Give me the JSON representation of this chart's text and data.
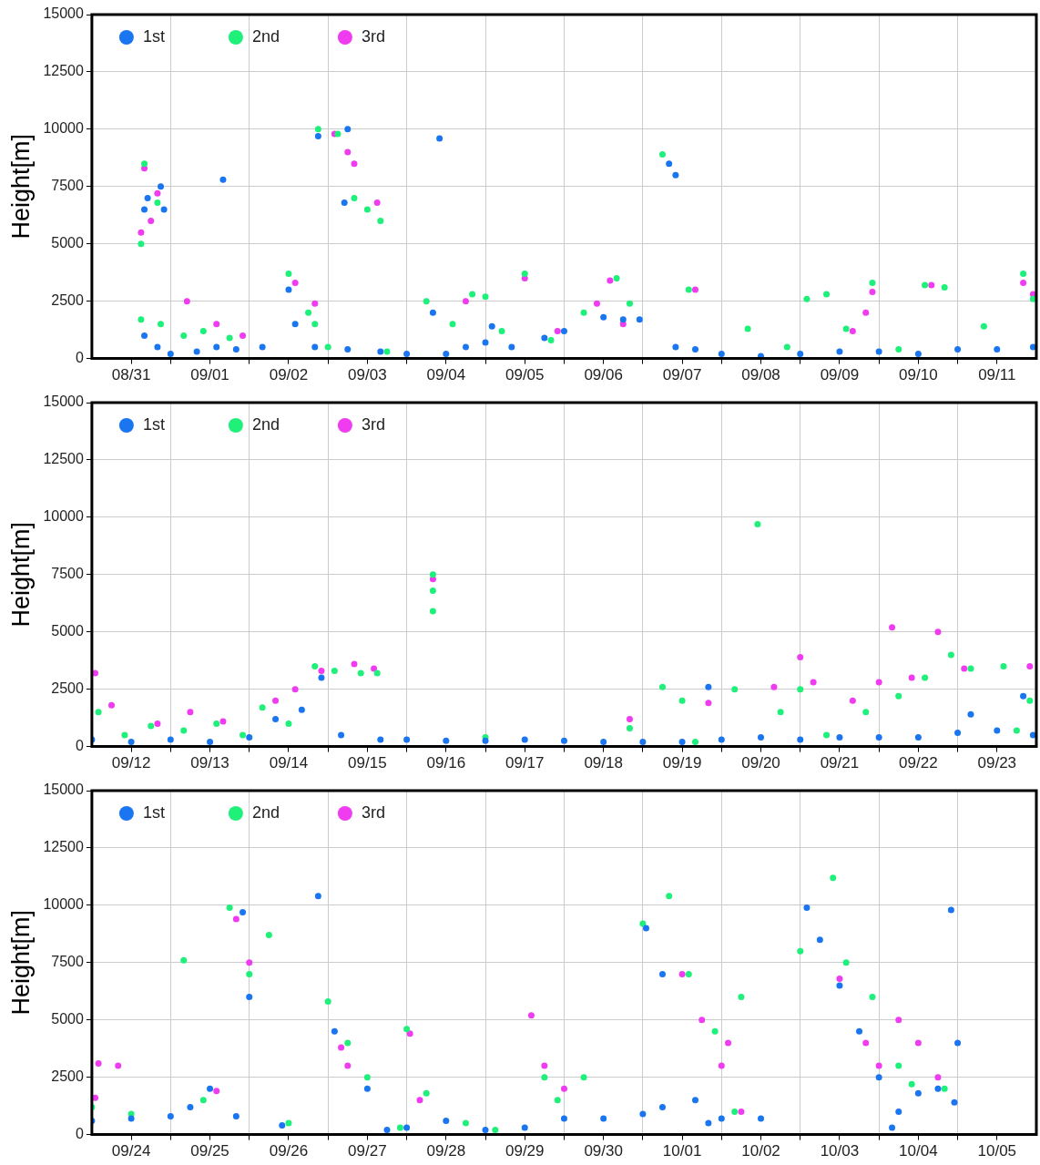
{
  "chart_data": [
    {
      "type": "scatter",
      "ylabel": "Height[m]",
      "legend": "top left",
      "grid": true,
      "marker": "circle",
      "xlim": [
        "--08-31T00:00",
        "--09-12T00:00"
      ],
      "ylim": [
        0,
        15000
      ],
      "yticks": [
        0,
        2500,
        5000,
        7500,
        10000,
        12500,
        15000
      ],
      "xticks": [
        {
          "value": "--08-31T12:00",
          "label": "08/31"
        },
        {
          "value": "--09-01T00:00",
          "label": null
        },
        {
          "value": "--09-01T12:00",
          "label": "09/01"
        },
        {
          "value": "--09-02T00:00",
          "label": null
        },
        {
          "value": "--09-02T12:00",
          "label": "09/02"
        },
        {
          "value": "--09-03T00:00",
          "label": null
        },
        {
          "value": "--09-03T12:00",
          "label": "09/03"
        },
        {
          "value": "--09-04T00:00",
          "label": null
        },
        {
          "value": "--09-04T12:00",
          "label": "09/04"
        },
        {
          "value": "--09-05T00:00",
          "label": null
        },
        {
          "value": "--09-05T12:00",
          "label": "09/05"
        },
        {
          "value": "--09-06T00:00",
          "label": null
        },
        {
          "value": "--09-06T12:00",
          "label": "09/06"
        },
        {
          "value": "--09-07T00:00",
          "label": null
        },
        {
          "value": "--09-07T12:00",
          "label": "09/07"
        },
        {
          "value": "--09-08T00:00",
          "label": null
        },
        {
          "value": "--09-08T12:00",
          "label": "09/08"
        },
        {
          "value": "--09-09T00:00",
          "label": null
        },
        {
          "value": "--09-09T12:00",
          "label": "09/09"
        },
        {
          "value": "--09-10T00:00",
          "label": null
        },
        {
          "value": "--09-10T12:00",
          "label": "09/10"
        },
        {
          "value": "--09-11T00:00",
          "label": null
        },
        {
          "value": "--09-11T12:00",
          "label": "09/11"
        }
      ],
      "series": [
        {
          "name": "1st",
          "color": "#1a75f0",
          "x": [
            "--08-31T16:00",
            "--08-31T17:00",
            "--08-31T21:00",
            "--08-31T22:00",
            "--09-01T16:00",
            "--09-02T21:00",
            "--09-03T06:00",
            "--09-03T05:00",
            "--09-04T10:00",
            "--09-07T08:00",
            "--09-07T10:00",
            "--08-31T16:00",
            "--08-31T20:00",
            "--09-01T00:00",
            "--09-01T08:00",
            "--09-01T14:00",
            "--09-01T20:00",
            "--09-02T04:00",
            "--09-02T12:00",
            "--09-02T14:00",
            "--09-02T20:00",
            "--09-03T06:00",
            "--09-03T16:00",
            "--09-04T00:00",
            "--09-04T08:00",
            "--09-04T12:00",
            "--09-04T18:00",
            "--09-05T00:00",
            "--09-05T02:00",
            "--09-05T08:00",
            "--09-05T18:00",
            "--09-06T00:00",
            "--09-06T12:00",
            "--09-06T18:00",
            "--09-06T23:00",
            "--09-07T10:00",
            "--09-07T16:00",
            "--09-08T00:00",
            "--09-08T12:00",
            "--09-09T00:00",
            "--09-09T12:00",
            "--09-10T00:00",
            "--09-10T12:00",
            "--09-11T00:00",
            "--09-11T12:00",
            "--09-11T23:00"
          ],
          "values": [
            6500,
            7000,
            7500,
            6500,
            7800,
            9700,
            10000,
            6800,
            9600,
            8500,
            8000,
            1000,
            500,
            200,
            300,
            500,
            400,
            500,
            3000,
            1500,
            500,
            400,
            300,
            200,
            2000,
            200,
            500,
            700,
            1400,
            500,
            900,
            1200,
            1800,
            1700,
            1700,
            500,
            400,
            200,
            100,
            200,
            300,
            300,
            200,
            400,
            400,
            500
          ]
        },
        {
          "name": "2nd",
          "color": "#1ef07a",
          "x": [
            "--08-31T15:00",
            "--08-31T16:00",
            "--08-31T20:00",
            "--08-31T15:00",
            "--08-31T21:00",
            "--09-01T04:00",
            "--09-01T10:00",
            "--09-01T18:00",
            "--09-02T12:00",
            "--09-02T18:00",
            "--09-02T20:00",
            "--09-02T21:00",
            "--09-03T03:00",
            "--09-03T08:00",
            "--09-03T12:00",
            "--09-03T16:00",
            "--09-03T00:00",
            "--09-03T18:00",
            "--09-04T06:00",
            "--09-04T14:00",
            "--09-04T20:00",
            "--09-05T00:00",
            "--09-05T05:00",
            "--09-05T12:00",
            "--09-05T20:00",
            "--09-06T06:00",
            "--09-06T16:00",
            "--09-06T20:00",
            "--09-07T06:00",
            "--09-07T14:00",
            "--09-08T08:00",
            "--09-08T20:00",
            "--09-09T02:00",
            "--09-09T08:00",
            "--09-09T14:00",
            "--09-09T22:00",
            "--09-10T06:00",
            "--09-10T14:00",
            "--09-10T20:00",
            "--09-11T08:00",
            "--09-11T20:00",
            "--09-11T23:00"
          ],
          "values": [
            5000,
            8500,
            6800,
            1700,
            1500,
            1000,
            1200,
            900,
            3700,
            2000,
            1500,
            10000,
            9800,
            7000,
            6500,
            6000,
            500,
            300,
            2500,
            1500,
            2800,
            2700,
            1200,
            3700,
            800,
            2000,
            3500,
            2400,
            8900,
            3000,
            1300,
            500,
            2600,
            2800,
            1300,
            3300,
            400,
            3200,
            3100,
            1400,
            3700,
            2600
          ]
        },
        {
          "name": "3rd",
          "color": "#f03cf0",
          "x": [
            "--08-31T15:00",
            "--08-31T16:00",
            "--08-31T18:00",
            "--08-31T20:00",
            "--09-01T05:00",
            "--09-01T14:00",
            "--09-01T22:00",
            "--09-02T14:00",
            "--09-02T20:00",
            "--09-03T02:00",
            "--09-03T06:00",
            "--09-03T08:00",
            "--09-03T15:00",
            "--09-04T18:00",
            "--09-05T12:00",
            "--09-05T22:00",
            "--09-06T10:00",
            "--09-06T14:00",
            "--09-06T18:00",
            "--09-07T16:00",
            "--09-09T16:00",
            "--09-09T20:00",
            "--09-09T22:00",
            "--09-10T16:00",
            "--09-11T20:00",
            "--09-11T23:00"
          ],
          "values": [
            5500,
            8300,
            6000,
            7200,
            2500,
            1500,
            1000,
            3300,
            2400,
            9800,
            9000,
            8500,
            6800,
            2500,
            3500,
            1200,
            2400,
            3400,
            1500,
            3000,
            1200,
            2000,
            2900,
            3200,
            3300,
            2800
          ]
        }
      ]
    },
    {
      "type": "scatter",
      "ylabel": "Height[m]",
      "legend": "top left",
      "grid": true,
      "marker": "circle",
      "xlim": [
        "--09-12T00:00",
        "--09-24T00:00"
      ],
      "ylim": [
        0,
        15000
      ],
      "yticks": [
        0,
        2500,
        5000,
        7500,
        10000,
        12500,
        15000
      ],
      "xticks": [
        {
          "value": "--09-12T12:00",
          "label": "09/12"
        },
        {
          "value": "--09-13T00:00",
          "label": null
        },
        {
          "value": "--09-13T12:00",
          "label": "09/13"
        },
        {
          "value": "--09-14T00:00",
          "label": null
        },
        {
          "value": "--09-14T12:00",
          "label": "09/14"
        },
        {
          "value": "--09-15T00:00",
          "label": null
        },
        {
          "value": "--09-15T12:00",
          "label": "09/15"
        },
        {
          "value": "--09-16T00:00",
          "label": null
        },
        {
          "value": "--09-16T12:00",
          "label": "09/16"
        },
        {
          "value": "--09-17T00:00",
          "label": null
        },
        {
          "value": "--09-17T12:00",
          "label": "09/17"
        },
        {
          "value": "--09-18T00:00",
          "label": null
        },
        {
          "value": "--09-18T12:00",
          "label": "09/18"
        },
        {
          "value": "--09-19T00:00",
          "label": null
        },
        {
          "value": "--09-19T12:00",
          "label": "09/19"
        },
        {
          "value": "--09-20T00:00",
          "label": null
        },
        {
          "value": "--09-20T12:00",
          "label": "09/20"
        },
        {
          "value": "--09-21T00:00",
          "label": null
        },
        {
          "value": "--09-21T12:00",
          "label": "09/21"
        },
        {
          "value": "--09-22T00:00",
          "label": null
        },
        {
          "value": "--09-22T12:00",
          "label": "09/22"
        },
        {
          "value": "--09-23T00:00",
          "label": null
        },
        {
          "value": "--09-23T12:00",
          "label": "09/23"
        }
      ],
      "series": [
        {
          "name": "1st",
          "color": "#1a75f0",
          "x": [
            "--09-12T00:00",
            "--09-12T12:00",
            "--09-13T00:00",
            "--09-13T12:00",
            "--09-14T00:00",
            "--09-14T08:00",
            "--09-14T16:00",
            "--09-14T22:00",
            "--09-15T04:00",
            "--09-15T16:00",
            "--09-16T00:00",
            "--09-16T12:00",
            "--09-17T00:00",
            "--09-17T12:00",
            "--09-18T00:00",
            "--09-18T12:00",
            "--09-19T00:00",
            "--09-19T12:00",
            "--09-19T20:00",
            "--09-20T00:00",
            "--09-20T12:00",
            "--09-21T00:00",
            "--09-21T12:00",
            "--09-22T00:00",
            "--09-22T12:00",
            "--09-23T00:00",
            "--09-23T04:00",
            "--09-23T12:00",
            "--09-23T20:00",
            "--09-23T23:00"
          ],
          "values": [
            300,
            200,
            300,
            200,
            400,
            1200,
            1600,
            3000,
            500,
            300,
            300,
            250,
            250,
            300,
            250,
            200,
            200,
            200,
            2600,
            300,
            400,
            300,
            400,
            400,
            400,
            600,
            1400,
            700,
            2200,
            500
          ]
        },
        {
          "name": "2nd",
          "color": "#1ef07a",
          "x": [
            "--09-12T02:00",
            "--09-12T10:00",
            "--09-12T18:00",
            "--09-13T04:00",
            "--09-13T14:00",
            "--09-13T22:00",
            "--09-14T04:00",
            "--09-14T12:00",
            "--09-14T20:00",
            "--09-15T02:00",
            "--09-15T10:00",
            "--09-15T15:00",
            "--09-16T08:00",
            "--09-16T08:00",
            "--09-16T08:00",
            "--09-17T00:00",
            "--09-18T20:00",
            "--09-19T06:00",
            "--09-19T12:00",
            "--09-19T16:00",
            "--09-20T11:00",
            "--09-20T04:00",
            "--09-20T18:00",
            "--09-21T00:00",
            "--09-21T08:00",
            "--09-21T20:00",
            "--09-22T06:00",
            "--09-22T14:00",
            "--09-22T22:00",
            "--09-23T04:00",
            "--09-23T14:00",
            "--09-23T22:00",
            "--09-23T18:00"
          ],
          "values": [
            1500,
            500,
            900,
            700,
            1000,
            500,
            1700,
            1000,
            3500,
            3300,
            3200,
            3200,
            7500,
            6800,
            5900,
            400,
            800,
            2600,
            2000,
            200,
            9700,
            2500,
            1500,
            2500,
            500,
            1500,
            2200,
            3000,
            4000,
            3400,
            3500,
            2000,
            700
          ]
        },
        {
          "name": "3rd",
          "color": "#f03cf0",
          "x": [
            "--09-12T01:00",
            "--09-12T06:00",
            "--09-12T20:00",
            "--09-13T06:00",
            "--09-13T16:00",
            "--09-14T08:00",
            "--09-14T14:00",
            "--09-14T22:00",
            "--09-15T08:00",
            "--09-15T14:00",
            "--09-16T08:00",
            "--09-18T20:00",
            "--09-19T20:00",
            "--09-20T16:00",
            "--09-21T00:00",
            "--09-21T04:00",
            "--09-21T16:00",
            "--09-22T00:00",
            "--09-22T04:00",
            "--09-22T10:00",
            "--09-22T18:00",
            "--09-23T02:00",
            "--09-23T22:00"
          ],
          "values": [
            3200,
            1800,
            1000,
            1500,
            1100,
            2000,
            2500,
            3300,
            3600,
            3400,
            7300,
            1200,
            1900,
            2600,
            3900,
            2800,
            2000,
            2800,
            5200,
            3000,
            5000,
            3400,
            3500
          ]
        }
      ]
    },
    {
      "type": "scatter",
      "ylabel": "Height[m]",
      "legend": "top left",
      "grid": true,
      "marker": "circle",
      "xlim": [
        "--09-24T00:00",
        "--10-06T00:00"
      ],
      "ylim": [
        0,
        15000
      ],
      "yticks": [
        0,
        2500,
        5000,
        7500,
        10000,
        12500,
        15000
      ],
      "xticks": [
        {
          "value": "--09-24T12:00",
          "label": "09/24"
        },
        {
          "value": "--09-25T00:00",
          "label": null
        },
        {
          "value": "--09-25T12:00",
          "label": "09/25"
        },
        {
          "value": "--09-26T00:00",
          "label": null
        },
        {
          "value": "--09-26T12:00",
          "label": "09/26"
        },
        {
          "value": "--09-27T00:00",
          "label": null
        },
        {
          "value": "--09-27T12:00",
          "label": "09/27"
        },
        {
          "value": "--09-28T00:00",
          "label": null
        },
        {
          "value": "--09-28T12:00",
          "label": "09/28"
        },
        {
          "value": "--09-29T00:00",
          "label": null
        },
        {
          "value": "--09-29T12:00",
          "label": "09/29"
        },
        {
          "value": "--09-30T00:00",
          "label": null
        },
        {
          "value": "--09-30T12:00",
          "label": "09/30"
        },
        {
          "value": "--10-01T00:00",
          "label": null
        },
        {
          "value": "--10-01T12:00",
          "label": "10/01"
        },
        {
          "value": "--10-02T00:00",
          "label": null
        },
        {
          "value": "--10-02T12:00",
          "label": "10/02"
        },
        {
          "value": "--10-03T00:00",
          "label": null
        },
        {
          "value": "--10-03T12:00",
          "label": "10/03"
        },
        {
          "value": "--10-04T00:00",
          "label": null
        },
        {
          "value": "--10-04T12:00",
          "label": "10/04"
        },
        {
          "value": "--10-05T00:00",
          "label": null
        },
        {
          "value": "--10-05T12:00",
          "label": "10/05"
        }
      ],
      "series": [
        {
          "name": "1st",
          "color": "#1a75f0",
          "x": [
            "--09-24T00:00",
            "--09-24T12:00",
            "--09-25T00:00",
            "--09-25T06:00",
            "--09-25T12:00",
            "--09-25T20:00",
            "--09-25T22:00",
            "--09-26T00:00",
            "--09-26T10:00",
            "--09-26T21:00",
            "--09-27T02:00",
            "--09-27T12:00",
            "--09-27T18:00",
            "--09-28T00:00",
            "--09-28T12:00",
            "--09-29T00:00",
            "--09-29T12:00",
            "--09-30T00:00",
            "--09-30T12:00",
            "--10-01T00:00",
            "--10-01T01:00",
            "--10-01T06:00",
            "--10-01T06:00",
            "--10-01T16:00",
            "--10-01T20:00",
            "--10-02T00:00",
            "--10-02T12:00",
            "--10-03T02:00",
            "--10-03T06:00",
            "--10-03T12:00",
            "--10-03T18:00",
            "--10-04T00:00",
            "--10-04T04:00",
            "--10-04T06:00",
            "--10-04T12:00",
            "--10-04T18:00",
            "--10-04T22:00",
            "--10-04T23:00",
            "--10-05T00:00"
          ],
          "values": [
            600,
            700,
            800,
            1200,
            2000,
            800,
            9700,
            6000,
            400,
            10400,
            4500,
            2000,
            200,
            300,
            600,
            200,
            300,
            700,
            700,
            900,
            9000,
            7000,
            1200,
            1500,
            500,
            700,
            700,
            9900,
            8500,
            6500,
            4500,
            2500,
            300,
            1000,
            1800,
            2000,
            9800,
            1400,
            4000
          ]
        },
        {
          "name": "2nd",
          "color": "#1ef07a",
          "x": [
            "--09-24T00:00",
            "--09-24T12:00",
            "--09-25T04:00",
            "--09-25T10:00",
            "--09-25T18:00",
            "--09-26T00:00",
            "--09-26T06:00",
            "--09-26T12:00",
            "--09-27T00:00",
            "--09-27T06:00",
            "--09-27T12:00",
            "--09-27T22:00",
            "--09-28T00:00",
            "--09-28T06:00",
            "--09-28T18:00",
            "--09-29T03:00",
            "--09-29T18:00",
            "--09-29T22:00",
            "--09-30T06:00",
            "--10-01T00:00",
            "--10-01T08:00",
            "--10-01T14:00",
            "--10-01T22:00",
            "--10-02T04:00",
            "--10-02T06:00",
            "--10-03T00:00",
            "--10-03T10:00",
            "--10-03T14:00",
            "--10-03T22:00",
            "--10-04T06:00",
            "--10-04T10:00",
            "--10-04T20:00"
          ],
          "values": [
            1200,
            900,
            7600,
            1500,
            9900,
            7000,
            8700,
            500,
            5800,
            4000,
            2500,
            300,
            4600,
            1800,
            500,
            200,
            2500,
            1500,
            2500,
            9200,
            10400,
            7000,
            4500,
            1000,
            6000,
            8000,
            11200,
            7500,
            6000,
            3000,
            2200,
            2000
          ]
        },
        {
          "name": "3rd",
          "color": "#f03cf0",
          "x": [
            "--09-24T02:00",
            "--09-24T08:00",
            "--09-24T01:00",
            "--09-25T14:00",
            "--09-25T20:00",
            "--09-26T00:00",
            "--09-27T04:00",
            "--09-27T06:00",
            "--09-28T01:00",
            "--09-28T04:00",
            "--09-29T14:00",
            "--09-29T18:00",
            "--09-30T00:00",
            "--10-01T12:00",
            "--10-01T18:00",
            "--10-02T00:00",
            "--10-02T02:00",
            "--10-02T06:00",
            "--10-03T12:00",
            "--10-03T20:00",
            "--10-04T00:00",
            "--10-04T06:00",
            "--10-04T12:00",
            "--10-04T18:00"
          ],
          "values": [
            3100,
            3000,
            1600,
            1900,
            9400,
            7500,
            3800,
            3000,
            4400,
            1500,
            5200,
            3000,
            2000,
            7000,
            5000,
            3000,
            4000,
            1000,
            6800,
            4000,
            3000,
            5000,
            4000,
            2500
          ]
        }
      ]
    }
  ]
}
